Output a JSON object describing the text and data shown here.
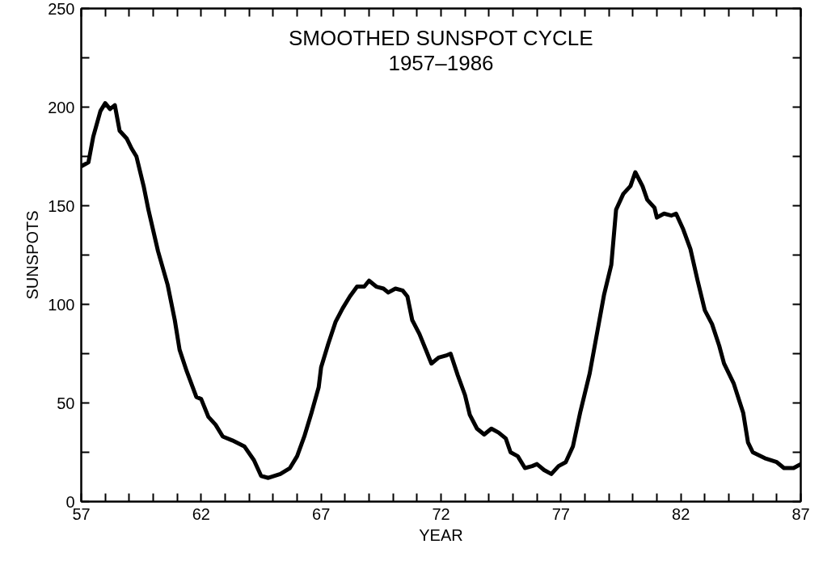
{
  "chart_data": {
    "type": "line",
    "title": "SMOOTHED SUNSPOT CYCLE",
    "subtitle": "1957–1986",
    "xlabel": "YEAR",
    "ylabel": "SUNSPOTS",
    "xlim": [
      57,
      87
    ],
    "ylim": [
      0,
      250
    ],
    "xticks": [
      57,
      {
        "value": 58,
        "label": null
      },
      {
        "value": 59,
        "label": null
      },
      {
        "value": 60,
        "label": null
      },
      {
        "value": 61,
        "label": null
      },
      62,
      {
        "value": 63,
        "label": null
      },
      {
        "value": 64,
        "label": null
      },
      {
        "value": 65,
        "label": null
      },
      {
        "value": 66,
        "label": null
      },
      67,
      {
        "value": 68,
        "label": null
      },
      {
        "value": 69,
        "label": null
      },
      {
        "value": 70,
        "label": null
      },
      {
        "value": 71,
        "label": null
      },
      72,
      {
        "value": 73,
        "label": null
      },
      {
        "value": 74,
        "label": null
      },
      {
        "value": 75,
        "label": null
      },
      {
        "value": 76,
        "label": null
      },
      77,
      {
        "value": 78,
        "label": null
      },
      {
        "value": 79,
        "label": null
      },
      {
        "value": 80,
        "label": null
      },
      {
        "value": 81,
        "label": null
      },
      82,
      {
        "value": 83,
        "label": null
      },
      {
        "value": 84,
        "label": null
      },
      {
        "value": 85,
        "label": null
      },
      {
        "value": 86,
        "label": null
      },
      87
    ],
    "yticks": [
      0,
      {
        "value": 25,
        "label": null
      },
      50,
      {
        "value": 75,
        "label": null
      },
      100,
      {
        "value": 125,
        "label": null
      },
      150,
      {
        "value": 175,
        "label": null
      },
      200,
      {
        "value": 225,
        "label": null
      },
      250
    ],
    "grid": false,
    "marker": "none",
    "line_style": "solid",
    "series": [
      {
        "color": "#000000",
        "x": [
          57.0,
          57.3,
          57.5,
          57.8,
          58.0,
          58.2,
          58.4,
          58.6,
          58.9,
          59.1,
          59.3,
          59.6,
          59.8,
          60.2,
          60.6,
          60.9,
          61.1,
          61.4,
          61.8,
          62.0,
          62.3,
          62.6,
          62.9,
          63.3,
          63.8,
          64.2,
          64.5,
          64.8,
          65.3,
          65.7,
          66.0,
          66.3,
          66.6,
          66.9,
          67.0,
          67.3,
          67.6,
          67.9,
          68.2,
          68.5,
          68.8,
          69.0,
          69.3,
          69.6,
          69.8,
          70.1,
          70.4,
          70.6,
          70.8,
          71.1,
          71.4,
          71.6,
          71.9,
          72.2,
          72.4,
          72.7,
          73.0,
          73.2,
          73.5,
          73.8,
          74.1,
          74.4,
          74.7,
          74.9,
          75.2,
          75.5,
          75.8,
          76.0,
          76.3,
          76.6,
          76.9,
          77.2,
          77.5,
          77.8,
          78.2,
          78.5,
          78.8,
          79.1,
          79.3,
          79.6,
          79.9,
          80.1,
          80.4,
          80.6,
          80.9,
          81.0,
          81.3,
          81.6,
          81.8,
          82.1,
          82.4,
          82.7,
          83.0,
          83.3,
          83.6,
          83.8,
          84.2,
          84.6,
          84.8,
          85.0,
          85.5,
          86.0,
          86.3,
          86.7,
          87.0
        ],
        "values": [
          170,
          172,
          185,
          198,
          202,
          199,
          201,
          188,
          184,
          179,
          175,
          160,
          148,
          127,
          110,
          92,
          77,
          66,
          53,
          52,
          43,
          39,
          33,
          31,
          28,
          21,
          13,
          12,
          14,
          17,
          23,
          33,
          45,
          58,
          68,
          80,
          91,
          98,
          104,
          109,
          109,
          112,
          109,
          108,
          106,
          108,
          107,
          104,
          92,
          85,
          76,
          70,
          73,
          74,
          75,
          64,
          54,
          44,
          37,
          34,
          37,
          35,
          32,
          25,
          23,
          17,
          18,
          19,
          16,
          14,
          18,
          20,
          28,
          45,
          65,
          85,
          105,
          120,
          148,
          156,
          160,
          167,
          160,
          153,
          149,
          144,
          146,
          145,
          146,
          138,
          128,
          112,
          97,
          90,
          79,
          70,
          60,
          45,
          30,
          25,
          22,
          20,
          17,
          17,
          19
        ]
      }
    ]
  }
}
